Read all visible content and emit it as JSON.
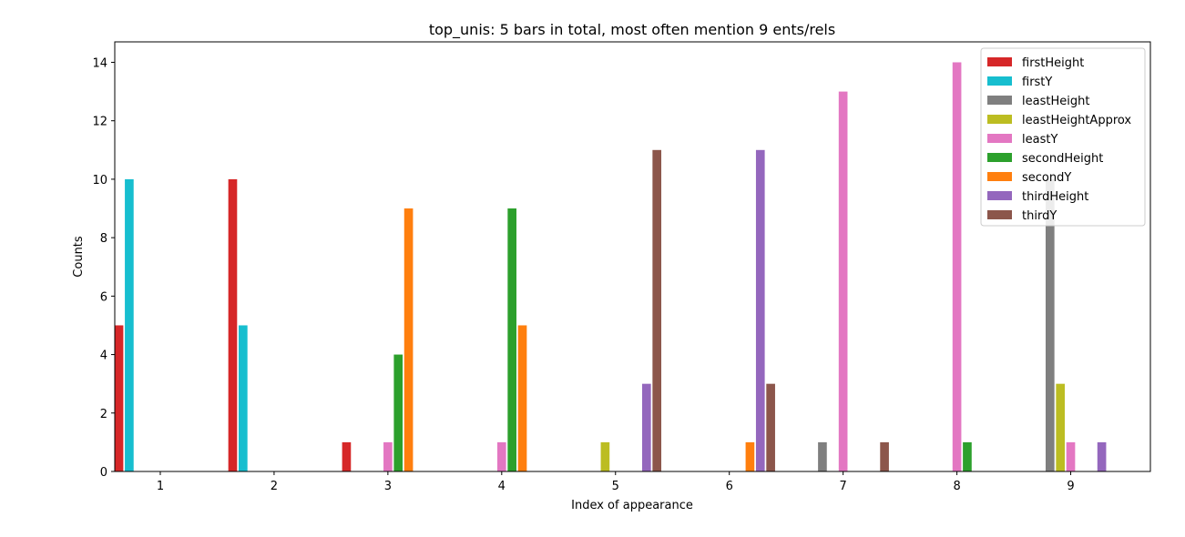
{
  "chart_data": {
    "type": "bar",
    "title": "top_unis: 5 bars in total, most often mention  9 ents/rels",
    "xlabel": "Index of appearance",
    "ylabel": "Counts",
    "categories": [
      "1",
      "2",
      "3",
      "4",
      "5",
      "6",
      "7",
      "8",
      "9"
    ],
    "xlim": [
      0.6,
      9.7
    ],
    "ylim": [
      0,
      14.7
    ],
    "yticks": [
      0,
      2,
      4,
      6,
      8,
      10,
      12,
      14
    ],
    "grid": false,
    "legend_position": "top-right",
    "series": [
      {
        "name": "firstHeight",
        "color": "#d62728",
        "values": [
          5,
          10,
          1,
          0,
          0,
          0,
          0,
          0,
          0
        ]
      },
      {
        "name": "firstY",
        "color": "#17becf",
        "values": [
          10,
          5,
          0,
          0,
          0,
          0,
          0,
          0,
          0
        ]
      },
      {
        "name": "leastHeight",
        "color": "#7f7f7f",
        "values": [
          0,
          0,
          0,
          0,
          0,
          0,
          1,
          0,
          10
        ]
      },
      {
        "name": "leastHeightApprox",
        "color": "#bcbd22",
        "values": [
          0,
          0,
          0,
          0,
          1,
          0,
          0,
          0,
          3
        ]
      },
      {
        "name": "leastY",
        "color": "#e377c2",
        "values": [
          0,
          0,
          1,
          1,
          0,
          0,
          13,
          14,
          1
        ]
      },
      {
        "name": "secondHeight",
        "color": "#2ca02c",
        "values": [
          0,
          0,
          4,
          9,
          0,
          0,
          0,
          1,
          0
        ]
      },
      {
        "name": "secondY",
        "color": "#ff7f0e",
        "values": [
          0,
          0,
          9,
          5,
          0,
          1,
          0,
          0,
          0
        ]
      },
      {
        "name": "thirdHeight",
        "color": "#9467bd",
        "values": [
          0,
          0,
          0,
          0,
          3,
          11,
          0,
          0,
          1
        ]
      },
      {
        "name": "thirdY",
        "color": "#8c564b",
        "values": [
          0,
          0,
          0,
          0,
          11,
          3,
          1,
          0,
          0
        ]
      }
    ]
  }
}
